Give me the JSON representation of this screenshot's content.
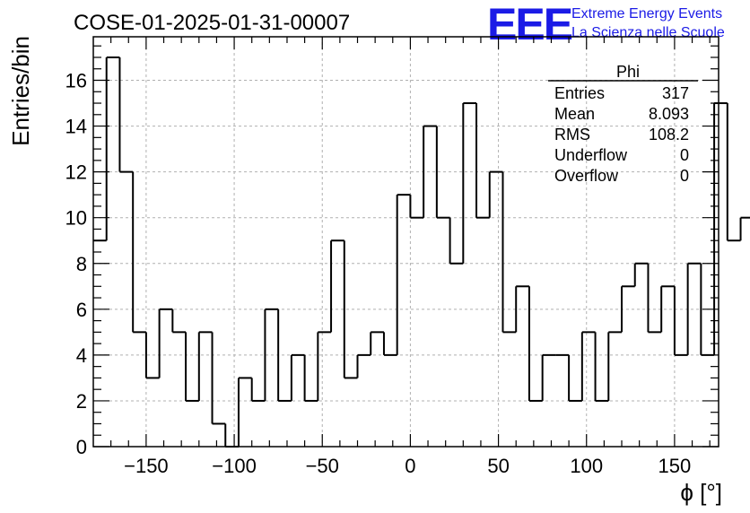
{
  "page": {
    "title": "COSE-01-2025-01-31-00007",
    "logo": {
      "mark": "EEE",
      "line1": "Extreme Energy Events",
      "line2": "La Scienza nelle Scuole",
      "color": "#1b1be6"
    }
  },
  "stats": {
    "name": "Phi",
    "rows": [
      {
        "label": "Entries",
        "value": "317"
      },
      {
        "label": "Mean",
        "value": "8.093"
      },
      {
        "label": "RMS",
        "value": "108.2"
      },
      {
        "label": "Underflow",
        "value": "0"
      },
      {
        "label": "Overflow",
        "value": "0"
      }
    ]
  },
  "chart_data": {
    "type": "bar",
    "style": "step-histogram",
    "title": "COSE-01-2025-01-31-00007",
    "xlabel": "ϕ [°]",
    "ylabel": "Entries/bin",
    "xlim": [
      -180,
      175
    ],
    "ylim": [
      0,
      17.9
    ],
    "bin_width": 7.5,
    "x_start": -180,
    "xticks": [
      -150,
      -100,
      -50,
      0,
      50,
      100,
      150
    ],
    "xtick_labels": [
      "−150",
      "−100",
      "−50",
      "0",
      "50",
      "100",
      "150"
    ],
    "yticks": [
      0,
      2,
      4,
      6,
      8,
      10,
      12,
      14,
      16
    ],
    "ytick_labels": [
      "0",
      "2",
      "4",
      "6",
      "8",
      "10",
      "12",
      "14",
      "16"
    ],
    "grid": true,
    "values": [
      9,
      17,
      12,
      5,
      3,
      6,
      5,
      2,
      5,
      1,
      0,
      3,
      2,
      6,
      2,
      4,
      2,
      5,
      9,
      3,
      4,
      5,
      4,
      11,
      10,
      14,
      10,
      8,
      15,
      10,
      12,
      5,
      7,
      2,
      4,
      4,
      2,
      5,
      2,
      5,
      7,
      8,
      5,
      7,
      4,
      8,
      4,
      15,
      9,
      10
    ]
  }
}
